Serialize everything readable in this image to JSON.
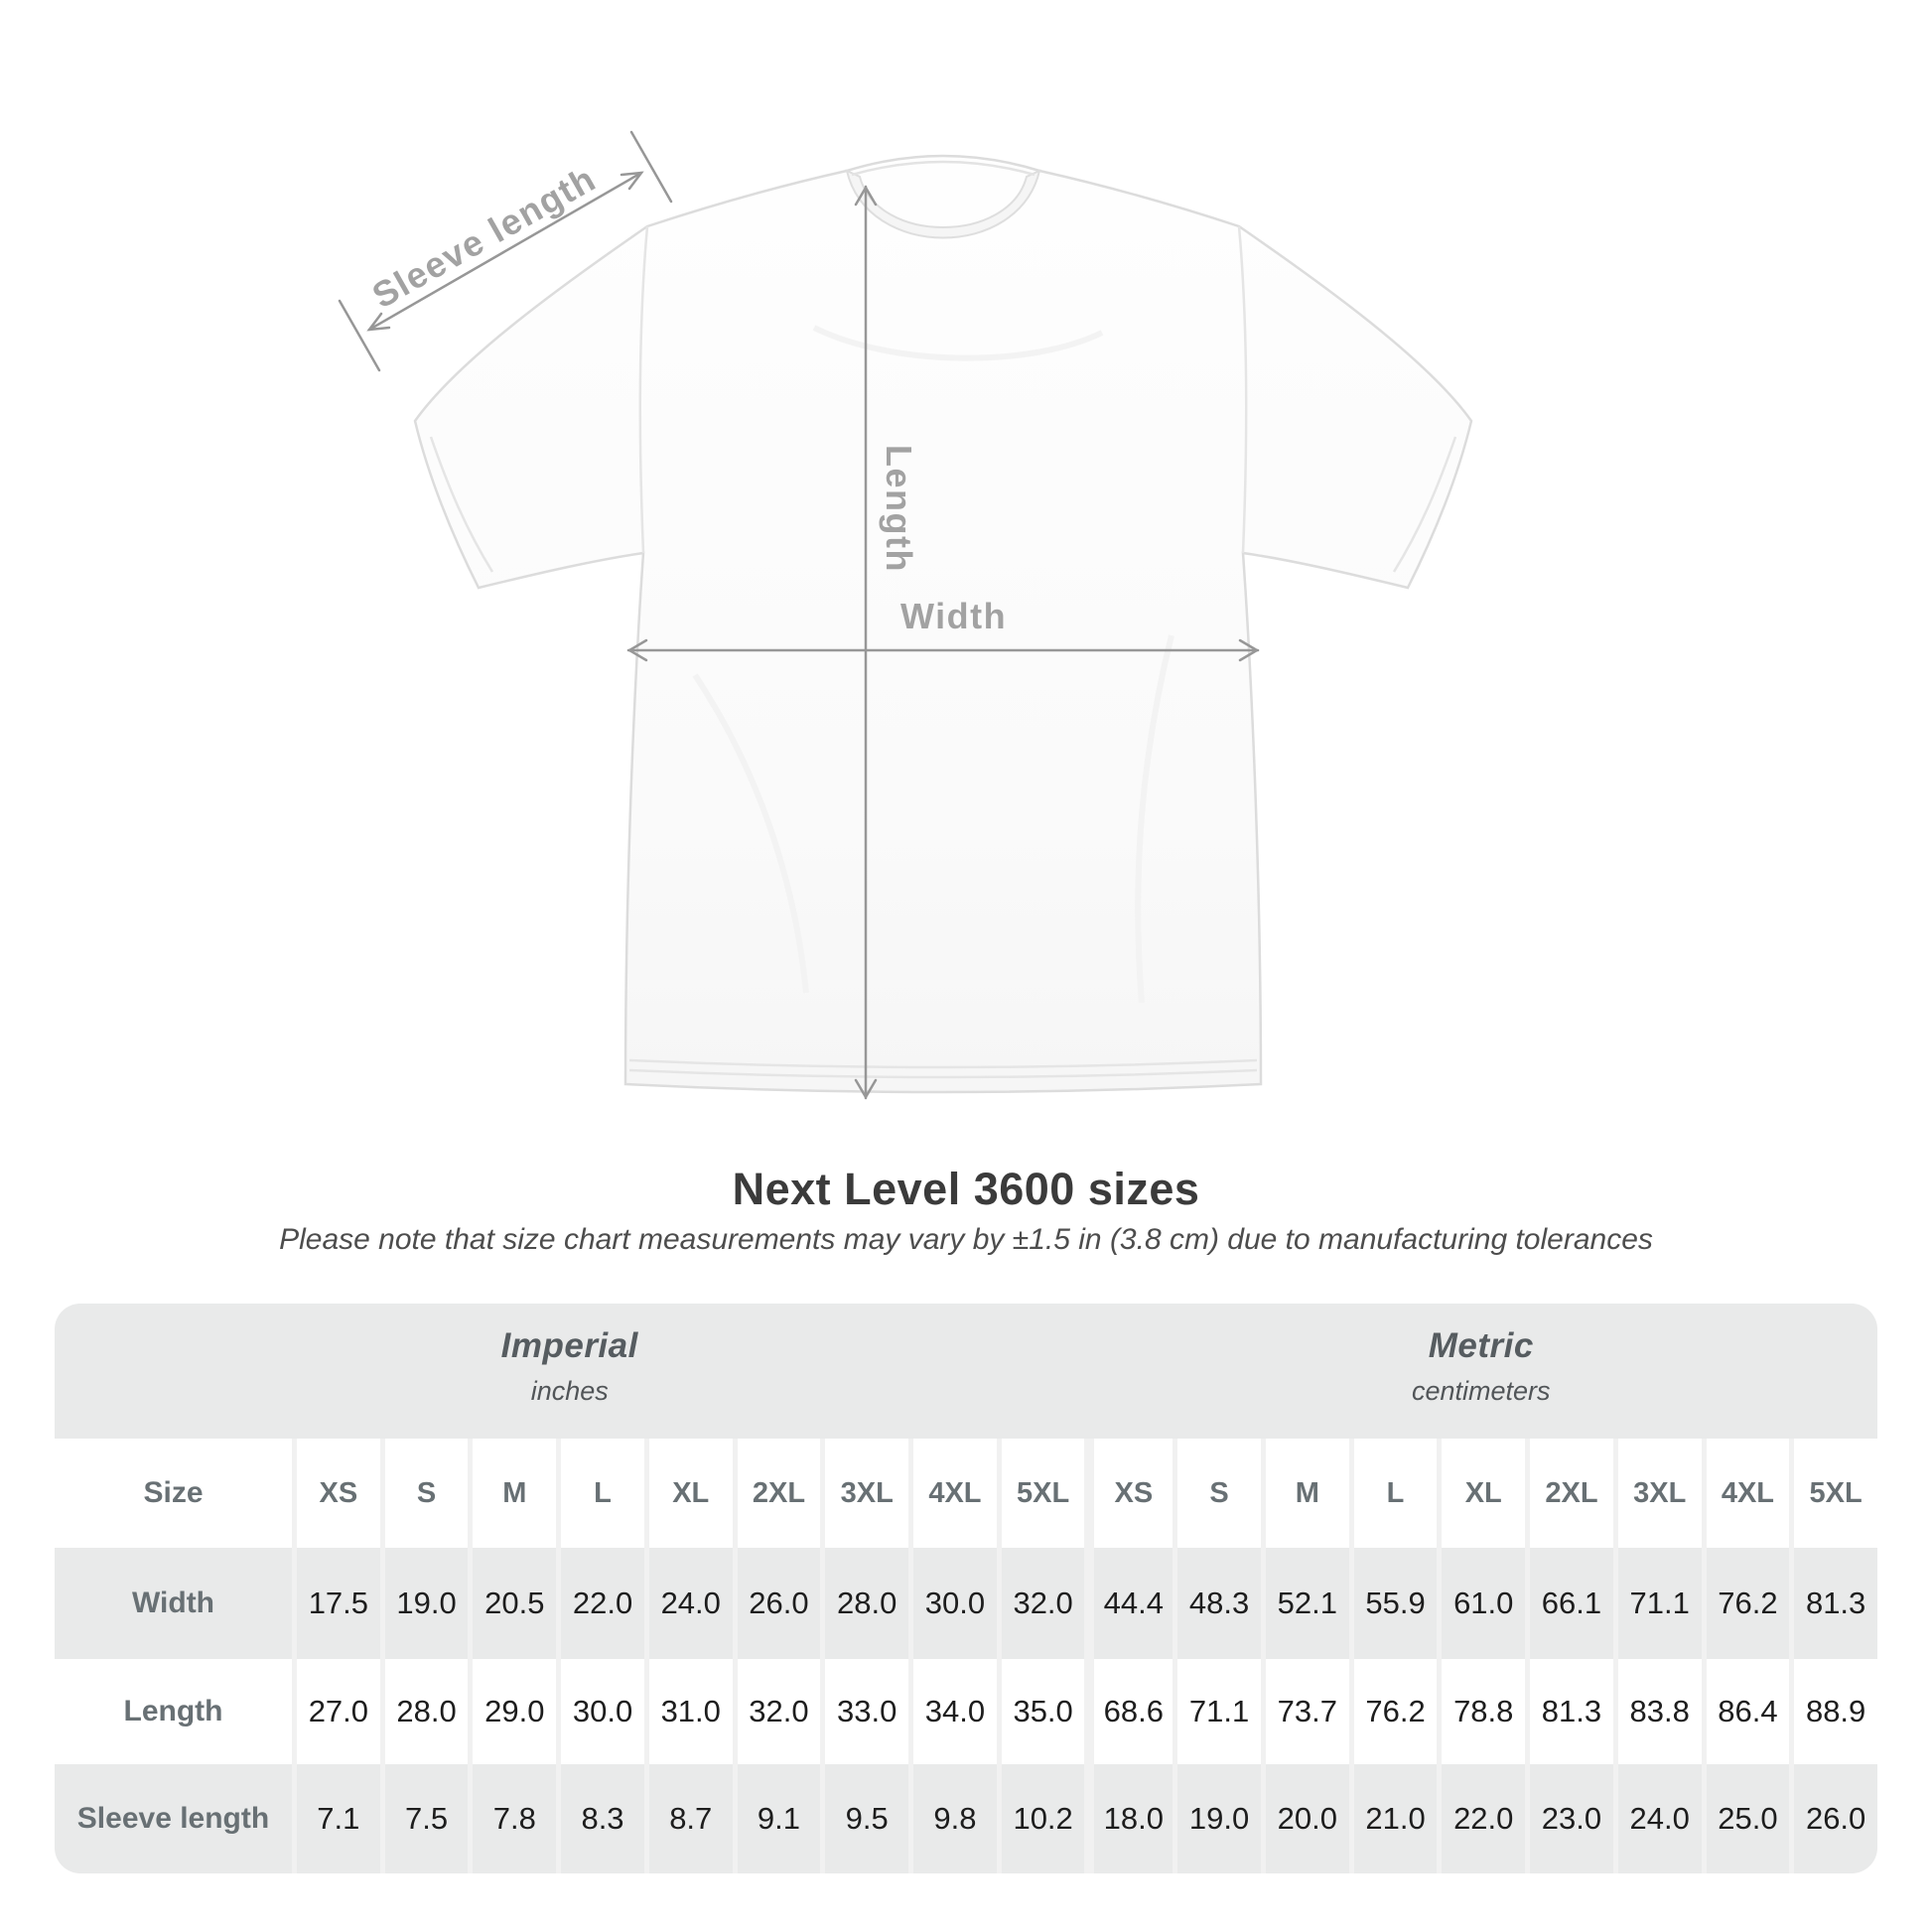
{
  "diagram": {
    "sleeve_length_label": "Sleeve length",
    "length_label": "Length",
    "width_label": "Width"
  },
  "title": "Next Level 3600 sizes",
  "subtitle": "Please note that size chart measurements may vary by ±1.5 in (3.8 cm) due to manufacturing tolerances",
  "size_table": {
    "size_label": "Size",
    "sizes": [
      "XS",
      "S",
      "M",
      "L",
      "XL",
      "2XL",
      "3XL",
      "4XL",
      "5XL"
    ],
    "groups": [
      {
        "name": "Imperial",
        "unit": "inches"
      },
      {
        "name": "Metric",
        "unit": "centimeters"
      }
    ],
    "rows": [
      {
        "label": "Width",
        "imperial": [
          "17.5",
          "19.0",
          "20.5",
          "22.0",
          "24.0",
          "26.0",
          "28.0",
          "30.0",
          "32.0"
        ],
        "metric": [
          "44.4",
          "48.3",
          "52.1",
          "55.9",
          "61.0",
          "66.1",
          "71.1",
          "76.2",
          "81.3"
        ]
      },
      {
        "label": "Length",
        "imperial": [
          "27.0",
          "28.0",
          "29.0",
          "30.0",
          "31.0",
          "32.0",
          "33.0",
          "34.0",
          "35.0"
        ],
        "metric": [
          "68.6",
          "71.1",
          "73.7",
          "76.2",
          "78.8",
          "81.3",
          "83.8",
          "86.4",
          "88.9"
        ]
      },
      {
        "label": "Sleeve length",
        "imperial": [
          "7.1",
          "7.5",
          "7.8",
          "8.3",
          "8.7",
          "9.1",
          "9.5",
          "9.8",
          "10.2"
        ],
        "metric": [
          "18.0",
          "19.0",
          "20.0",
          "21.0",
          "22.0",
          "23.0",
          "24.0",
          "25.0",
          "26.0"
        ]
      }
    ]
  },
  "colors": {
    "measurement_gray": "#a2a2a2",
    "arrow_gray": "#979797",
    "table_background": "#e9eaea",
    "row_white": "#ffffff",
    "title_text": "#3b3b3b",
    "header_text": "#687074",
    "value_text": "#1d1d1d"
  }
}
